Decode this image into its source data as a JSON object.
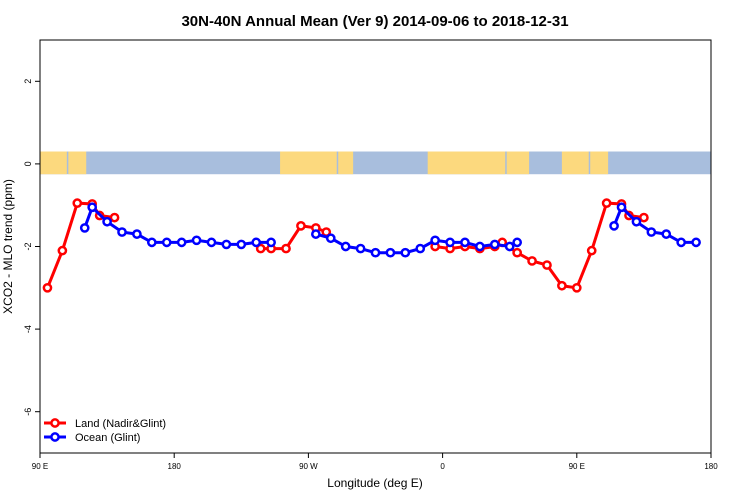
{
  "chart_data": {
    "type": "line",
    "title": "30N-40N Annual Mean (Ver 9)   2014-09-06 to 2018-12-31",
    "xlabel": "Longitude (deg E)",
    "ylabel": "XCO2 - MLO trend (ppm)",
    "xlim": [
      90,
      540
    ],
    "ylim": [
      -7,
      3
    ],
    "x_ticks": [
      90,
      180,
      270,
      360,
      450,
      540
    ],
    "x_tick_labels": [
      "90 E",
      "180",
      "90 W",
      "0",
      "90 E",
      "180"
    ],
    "y_ticks": [
      -6,
      -4,
      -2,
      0,
      2
    ],
    "y_tick_labels": [
      "-6",
      "-4",
      "-2",
      "0",
      "2"
    ],
    "legend_position": "bottom-left",
    "colors": {
      "land": "#ff0000",
      "ocean": "#0000ff",
      "map_ocean": "#a8bedd",
      "map_land": "#fcd97e"
    },
    "series": [
      {
        "name": "Land (Nadir&Glint)",
        "color": "#ff0000",
        "segments": [
          [
            [
              95,
              -3.0
            ],
            [
              105,
              -2.1
            ],
            [
              115,
              -0.95
            ],
            [
              125,
              -0.97
            ],
            [
              130,
              -1.25
            ],
            [
              140,
              -1.3
            ]
          ],
          [
            [
              238,
              -2.05
            ],
            [
              245,
              -2.05
            ],
            [
              255,
              -2.05
            ],
            [
              265,
              -1.5
            ],
            [
              275,
              -1.55
            ],
            [
              282,
              -1.65
            ]
          ],
          [
            [
              355,
              -2.0
            ],
            [
              365,
              -2.05
            ],
            [
              375,
              -2.0
            ],
            [
              385,
              -2.05
            ],
            [
              395,
              -2.0
            ],
            [
              400,
              -1.9
            ],
            [
              410,
              -2.15
            ],
            [
              420,
              -2.35
            ],
            [
              430,
              -2.45
            ],
            [
              440,
              -2.95
            ],
            [
              450,
              -3.0
            ],
            [
              460,
              -2.1
            ],
            [
              470,
              -0.95
            ],
            [
              480,
              -0.97
            ],
            [
              485,
              -1.25
            ],
            [
              495,
              -1.3
            ]
          ]
        ]
      },
      {
        "name": "Ocean (Glint)",
        "color": "#0000ff",
        "segments": [
          [
            [
              120,
              -1.55
            ],
            [
              125,
              -1.05
            ],
            [
              135,
              -1.4
            ],
            [
              145,
              -1.65
            ],
            [
              155,
              -1.7
            ],
            [
              165,
              -1.9
            ],
            [
              175,
              -1.9
            ],
            [
              185,
              -1.9
            ],
            [
              195,
              -1.85
            ],
            [
              205,
              -1.9
            ],
            [
              215,
              -1.95
            ],
            [
              225,
              -1.95
            ],
            [
              235,
              -1.9
            ],
            [
              245,
              -1.9
            ]
          ],
          [
            [
              275,
              -1.7
            ],
            [
              285,
              -1.8
            ],
            [
              295,
              -2.0
            ],
            [
              305,
              -2.05
            ],
            [
              315,
              -2.15
            ],
            [
              325,
              -2.15
            ],
            [
              335,
              -2.15
            ],
            [
              345,
              -2.05
            ],
            [
              355,
              -1.85
            ],
            [
              365,
              -1.9
            ],
            [
              375,
              -1.9
            ],
            [
              385,
              -2.0
            ],
            [
              395,
              -1.95
            ],
            [
              405,
              -2.0
            ],
            [
              410,
              -1.9
            ]
          ],
          [
            [
              475,
              -1.5
            ],
            [
              480,
              -1.05
            ],
            [
              490,
              -1.4
            ],
            [
              500,
              -1.65
            ],
            [
              510,
              -1.7
            ],
            [
              520,
              -1.9
            ],
            [
              530,
              -1.9
            ]
          ]
        ]
      }
    ]
  }
}
